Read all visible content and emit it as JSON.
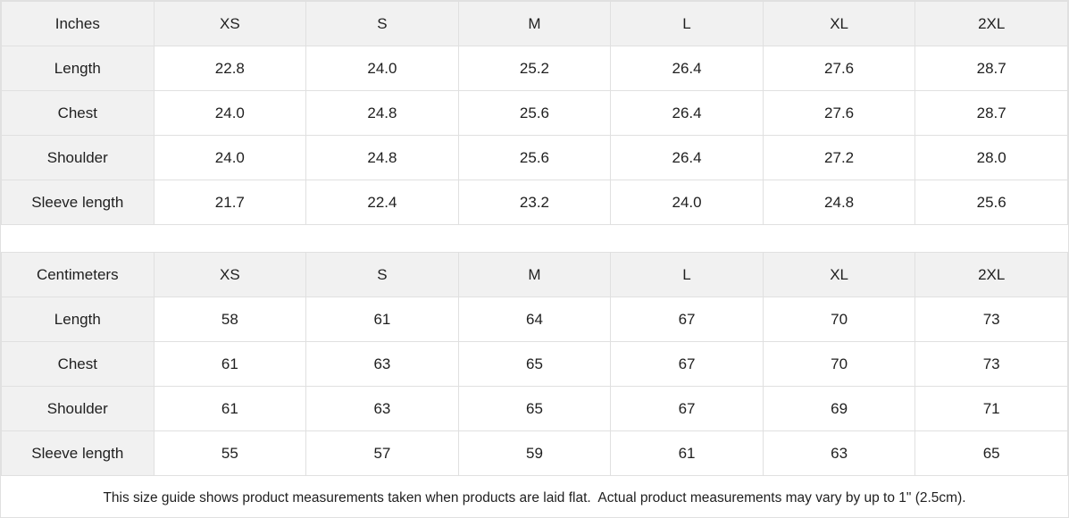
{
  "tables": [
    {
      "unit_label": "Inches",
      "sizes": [
        "XS",
        "S",
        "M",
        "L",
        "XL",
        "2XL"
      ],
      "rows": [
        {
          "label": "Length",
          "values": [
            "22.8",
            "24.0",
            "25.2",
            "26.4",
            "27.6",
            "28.7"
          ]
        },
        {
          "label": "Chest",
          "values": [
            "24.0",
            "24.8",
            "25.6",
            "26.4",
            "27.6",
            "28.7"
          ]
        },
        {
          "label": "Shoulder",
          "values": [
            "24.0",
            "24.8",
            "25.6",
            "26.4",
            "27.2",
            "28.0"
          ]
        },
        {
          "label": "Sleeve length",
          "values": [
            "21.7",
            "22.4",
            "23.2",
            "24.0",
            "24.8",
            "25.6"
          ]
        }
      ]
    },
    {
      "unit_label": "Centimeters",
      "sizes": [
        "XS",
        "S",
        "M",
        "L",
        "XL",
        "2XL"
      ],
      "rows": [
        {
          "label": "Length",
          "values": [
            "58",
            "61",
            "64",
            "67",
            "70",
            "73"
          ]
        },
        {
          "label": "Chest",
          "values": [
            "61",
            "63",
            "65",
            "67",
            "70",
            "73"
          ]
        },
        {
          "label": "Shoulder",
          "values": [
            "61",
            "63",
            "65",
            "67",
            "69",
            "71"
          ]
        },
        {
          "label": "Sleeve length",
          "values": [
            "55",
            "57",
            "59",
            "61",
            "63",
            "65"
          ]
        }
      ]
    }
  ],
  "footer": {
    "note": "This size guide shows product measurements taken when products are laid flat.  Actual product measurements may vary by up to 1\" (2.5cm)."
  },
  "colors": {
    "header_cell_bg": "#f1f1f1",
    "grid_border": "#e0e0e0",
    "text": "#1f1f1f",
    "data_cell_bg": "#ffffff"
  }
}
